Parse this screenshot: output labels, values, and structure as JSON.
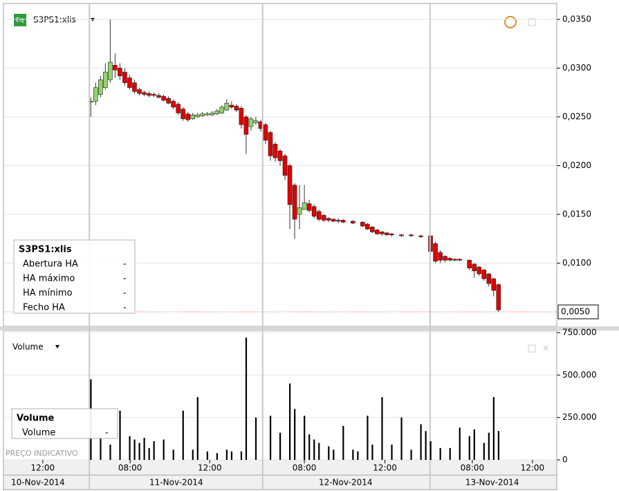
{
  "chart_data": [
    {
      "type": "candlestick",
      "title": "S3PS1:xlis",
      "legend_title": "S3PS1:xlis",
      "legend_rows": [
        [
          "Abertura HA",
          "-"
        ],
        [
          "HA máximo",
          "-"
        ],
        [
          "HA mínimo",
          "-"
        ],
        [
          "Fecho HA",
          "-"
        ]
      ],
      "up_color": "#90d46a",
      "down_color": "#e00000",
      "x": [
        18,
        19,
        20,
        21,
        22,
        23,
        24,
        25,
        26,
        27,
        28,
        29,
        30,
        31,
        32,
        33,
        34,
        35,
        36,
        37,
        38,
        39,
        40,
        41,
        42,
        43,
        44,
        45,
        46,
        47,
        48,
        49,
        50,
        51,
        52,
        53,
        54,
        55,
        56,
        57,
        58,
        59,
        60,
        61,
        62,
        63,
        64,
        65,
        66,
        67,
        68,
        69,
        70,
        72,
        74,
        75,
        76,
        77,
        78,
        79,
        80,
        82,
        84,
        86,
        88,
        89,
        90,
        91,
        92,
        93,
        94,
        96,
        97,
        98,
        99,
        100,
        101,
        102
      ],
      "open": [
        0.0265,
        0.0266,
        0.0273,
        0.028,
        0.0288,
        0.0303,
        0.03,
        0.0296,
        0.029,
        0.0285,
        0.0278,
        0.0275,
        0.0274,
        0.0273,
        0.0272,
        0.0271,
        0.0269,
        0.0266,
        0.0263,
        0.0258,
        0.0253,
        0.0248,
        0.025,
        0.0251,
        0.0252,
        0.0252,
        0.0253,
        0.0254,
        0.0257,
        0.0262,
        0.0261,
        0.0259,
        0.025,
        0.024,
        0.0244,
        0.0245,
        0.0242,
        0.0234,
        0.0222,
        0.0215,
        0.021,
        0.02,
        0.018,
        0.015,
        0.0155,
        0.0161,
        0.0158,
        0.0153,
        0.0149,
        0.0146,
        0.0145,
        0.0144,
        0.0144,
        0.0143,
        0.0142,
        0.014,
        0.0137,
        0.0134,
        0.0132,
        0.0131,
        0.013,
        0.0129,
        0.0129,
        0.0128,
        0.0128,
        0.012,
        0.0111,
        0.0107,
        0.0105,
        0.0104,
        0.0104,
        0.0103,
        0.0099,
        0.0096,
        0.0093,
        0.0089,
        0.0084,
        0.0078
      ],
      "high": [
        0.027,
        0.0285,
        0.0292,
        0.0305,
        0.035,
        0.0315,
        0.0305,
        0.03,
        0.0293,
        0.0288,
        0.028,
        0.0277,
        0.0276,
        0.0275,
        0.0274,
        0.0273,
        0.0271,
        0.0268,
        0.0265,
        0.026,
        0.0255,
        0.0254,
        0.0254,
        0.0255,
        0.0255,
        0.0256,
        0.0258,
        0.0262,
        0.0268,
        0.0266,
        0.0263,
        0.0261,
        0.0252,
        0.025,
        0.025,
        0.0247,
        0.0244,
        0.0236,
        0.0224,
        0.0217,
        0.0212,
        0.0202,
        0.0182,
        0.018,
        0.018,
        0.0165,
        0.016,
        0.0155,
        0.015,
        0.0147,
        0.0146,
        0.0146,
        0.0145,
        0.0144,
        0.0143,
        0.0141,
        0.0138,
        0.0135,
        0.0133,
        0.0132,
        0.0131,
        0.013,
        0.013,
        0.0129,
        0.0129,
        0.0122,
        0.0113,
        0.0108,
        0.0106,
        0.0105,
        0.0105,
        0.0104,
        0.01,
        0.0097,
        0.0094,
        0.009,
        0.0085,
        0.0079
      ],
      "low": [
        0.025,
        0.0262,
        0.027,
        0.0278,
        0.0285,
        0.029,
        0.0288,
        0.0282,
        0.0278,
        0.0274,
        0.0272,
        0.0271,
        0.027,
        0.027,
        0.0269,
        0.0266,
        0.0263,
        0.0258,
        0.0252,
        0.0246,
        0.0245,
        0.0247,
        0.0249,
        0.025,
        0.0251,
        0.0251,
        0.0252,
        0.0253,
        0.0256,
        0.0258,
        0.0255,
        0.0238,
        0.0212,
        0.0236,
        0.0242,
        0.0235,
        0.0222,
        0.0205,
        0.0204,
        0.02,
        0.0185,
        0.0135,
        0.0125,
        0.0135,
        0.0155,
        0.0152,
        0.0146,
        0.0143,
        0.0142,
        0.0142,
        0.0142,
        0.0141,
        0.0141,
        0.014,
        0.0137,
        0.0134,
        0.0131,
        0.0129,
        0.0128,
        0.0128,
        0.0127,
        0.0127,
        0.0127,
        0.0126,
        0.011,
        0.01,
        0.01,
        0.0101,
        0.0102,
        0.0102,
        0.0102,
        0.0093,
        0.0085,
        0.0087,
        0.0082,
        0.0076,
        0.0066,
        0.005
      ],
      "close": [
        0.0266,
        0.028,
        0.0288,
        0.0296,
        0.0306,
        0.0298,
        0.0292,
        0.0285,
        0.028,
        0.0276,
        0.0274,
        0.0273,
        0.0272,
        0.0272,
        0.027,
        0.0267,
        0.0264,
        0.026,
        0.0254,
        0.0248,
        0.0247,
        0.0252,
        0.0252,
        0.0253,
        0.0253,
        0.0254,
        0.0256,
        0.026,
        0.0264,
        0.026,
        0.0257,
        0.0242,
        0.0232,
        0.0248,
        0.0246,
        0.0238,
        0.0226,
        0.021,
        0.0208,
        0.0205,
        0.019,
        0.016,
        0.0145,
        0.0157,
        0.0162,
        0.0154,
        0.0148,
        0.0145,
        0.0144,
        0.0144,
        0.0143,
        0.0143,
        0.0142,
        0.0141,
        0.0138,
        0.0135,
        0.0132,
        0.013,
        0.013,
        0.0129,
        0.0129,
        0.0128,
        0.0128,
        0.0127,
        0.0112,
        0.0102,
        0.0103,
        0.0103,
        0.0103,
        0.0103,
        0.0103,
        0.0095,
        0.0092,
        0.0089,
        0.0084,
        0.0079,
        0.0072,
        0.0052
      ],
      "xlim": [
        0,
        114
      ],
      "ylim": [
        0.00351,
        0.03663
      ],
      "yticks": [
        {
          "value": 0.01,
          "label": "0,0100"
        },
        {
          "value": 0.015,
          "label": "0,0150"
        },
        {
          "value": 0.02,
          "label": "0,0200"
        },
        {
          "value": 0.025,
          "label": "0,0250"
        },
        {
          "value": 0.03,
          "label": "0,0300"
        },
        {
          "value": 0.035,
          "label": "0,0350"
        }
      ],
      "last_price": {
        "value": 0.005,
        "label": "0,0050"
      },
      "grid": true
    },
    {
      "type": "bar",
      "title": "Volume",
      "color": "#000000",
      "legend_title": "Volume",
      "legend_rows": [
        [
          "Volume",
          "-"
        ]
      ],
      "watermark": "PREÇO INDICATIVO",
      "x": [
        18,
        20,
        22,
        24,
        26,
        27,
        28,
        29,
        30,
        31,
        33,
        35,
        37,
        39,
        40,
        42,
        44,
        46,
        47,
        49,
        50,
        52,
        55,
        57,
        59,
        60,
        62,
        63,
        64,
        65,
        67,
        68,
        70,
        72,
        73,
        75,
        76,
        78,
        80,
        82,
        84,
        86,
        87,
        88,
        90,
        92,
        94,
        96,
        97,
        99,
        100,
        101,
        102
      ],
      "values": [
        475000,
        150000,
        90000,
        290000,
        140000,
        120000,
        100000,
        130000,
        70000,
        110000,
        120000,
        60000,
        290000,
        60000,
        370000,
        50000,
        40000,
        60000,
        50000,
        50000,
        720000,
        250000,
        260000,
        160000,
        450000,
        300000,
        260000,
        150000,
        120000,
        100000,
        80000,
        60000,
        200000,
        60000,
        50000,
        260000,
        90000,
        370000,
        90000,
        250000,
        60000,
        210000,
        170000,
        110000,
        70000,
        70000,
        190000,
        140000,
        180000,
        100000,
        160000,
        370000,
        170000
      ],
      "xlim": [
        0,
        114
      ],
      "ylim": [
        0,
        762000
      ],
      "yticks": [
        0,
        {
          "value": 250000,
          "label": "250.000"
        },
        {
          "value": 500000,
          "label": "500.000"
        },
        {
          "value": 750000,
          "label": "750.000"
        }
      ],
      "xticks": [
        {
          "value": 8.1,
          "label": "12:00"
        },
        {
          "value": 26.1,
          "label": "08:00"
        },
        {
          "value": 42.5,
          "label": "12:00"
        },
        {
          "value": 62,
          "label": "08:00"
        },
        {
          "value": 78.6,
          "label": "12:00"
        },
        {
          "value": 96.6,
          "label": "08:00"
        },
        {
          "value": 109,
          "label": "12:00"
        }
      ],
      "date_ticks": [
        {
          "value": 7.1,
          "label": "10-Nov-2014"
        },
        {
          "value": 35.6,
          "label": "11-Nov-2014"
        },
        {
          "value": 70.5,
          "label": "12-Nov-2014"
        },
        {
          "value": 100.7,
          "label": "13-Nov-2014"
        }
      ],
      "day_separators": [
        17.7,
        53.4,
        87.9
      ],
      "grid": true
    }
  ]
}
